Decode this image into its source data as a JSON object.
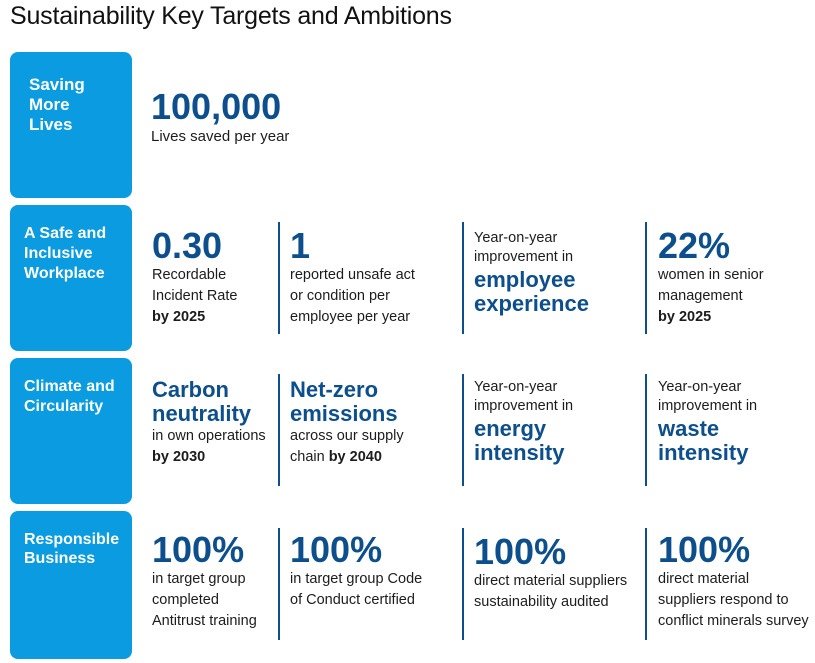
{
  "title": "Sustainability Key Targets and Ambitions",
  "rows": {
    "saving": {
      "label": [
        "Saving",
        "More",
        "Lives"
      ],
      "cells": [
        {
          "value": "100,000",
          "text": "Lives saved per year"
        }
      ]
    },
    "workplace": {
      "label": [
        "A Safe and",
        "Inclusive",
        "Workplace"
      ],
      "cells": [
        {
          "value": "0.30",
          "lines": [
            "Recordable",
            "Incident Rate"
          ],
          "target": "by 2025"
        },
        {
          "value": "1",
          "lines": [
            "reported unsafe act",
            "or condition per",
            "employee per year"
          ]
        },
        {
          "lines": [
            "Year-on-year",
            "improvement in"
          ],
          "emphasis": [
            "employee",
            "experience"
          ]
        },
        {
          "value": "22%",
          "lines": [
            "women in senior",
            "management"
          ],
          "target": "by 2025"
        }
      ]
    },
    "climate": {
      "label": [
        "Climate and",
        "Circularity"
      ],
      "cells": [
        {
          "emphasis": [
            "Carbon",
            "neutrality"
          ],
          "lines": [
            "in own operations"
          ],
          "target": "by 2030"
        },
        {
          "emphasis": [
            "Net-zero",
            "emissions"
          ],
          "lines": [
            "across our supply"
          ],
          "tail": "chain",
          "target": "by 2040"
        },
        {
          "lines": [
            "Year-on-year",
            "improvement in"
          ],
          "emphasis": [
            "energy",
            "intensity"
          ]
        },
        {
          "lines": [
            "Year-on-year",
            "improvement in"
          ],
          "emphasis": [
            "waste",
            "intensity"
          ]
        }
      ]
    },
    "business": {
      "label": [
        "Responsible",
        "Business"
      ],
      "cells": [
        {
          "value": "100%",
          "lines": [
            "in target group",
            "completed",
            "Antitrust training"
          ]
        },
        {
          "value": "100%",
          "lines": [
            "in target group Code",
            "of Conduct certified"
          ]
        },
        {
          "value": "100%",
          "lines": [
            "direct material suppliers",
            "sustainability audited"
          ]
        },
        {
          "value": "100%",
          "lines": [
            "direct material",
            "suppliers respond to",
            "conflict minerals survey"
          ]
        }
      ]
    }
  }
}
